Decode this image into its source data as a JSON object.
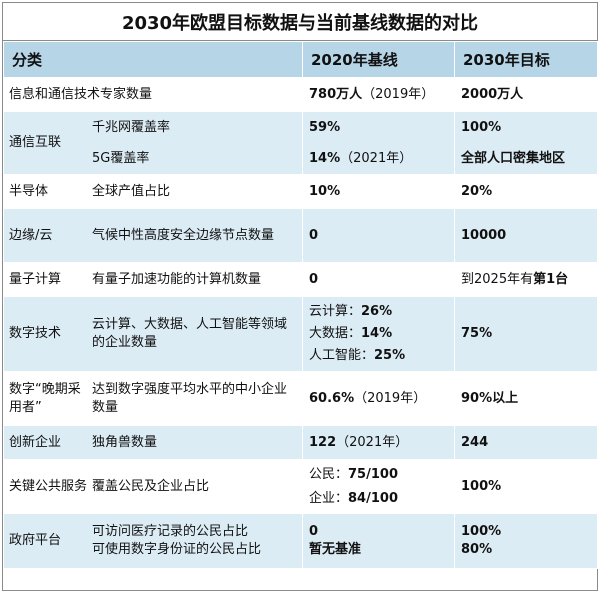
{
  "title": "2030年欧盟目标数据与当前基线数据的对比",
  "header": {
    "category": "分类",
    "baseline": "2020年基线",
    "target": "2030年目标"
  },
  "rows": [
    {
      "category": "信息和通信技术专家数量",
      "baseline": "780万人",
      "baseline_note": "（2019年）",
      "target": "2000万人"
    },
    {
      "category": "通信互联",
      "sub1": "千兆网覆盖率",
      "sub2": "5G覆盖率",
      "baseline1": "59%",
      "baseline2": "14%",
      "baseline2_note": "（2021年）",
      "target1": "100%",
      "target2": "全部人口密集地区"
    },
    {
      "category": "半导体",
      "sub": "全球产值占比",
      "baseline": "10%",
      "target": "20%"
    },
    {
      "category": "边缘/云",
      "sub": "气候中性高度安全边缘节点数量",
      "baseline": "0",
      "target": "10000"
    },
    {
      "category": "量子计算",
      "sub": "有量子加速功能的计算机数量",
      "baseline": "0",
      "target_prefix": "到2025年有",
      "target_bold": "第1台"
    },
    {
      "category": "数字技术",
      "sub": "云计算、大数据、人工智能等领域的企业数量",
      "baseline_lines": [
        {
          "label": "云计算：",
          "value": "26%"
        },
        {
          "label": "大数据：",
          "value": "14%"
        },
        {
          "label": "人工智能：",
          "value": "25%"
        }
      ],
      "target": "75%"
    },
    {
      "category": "数字“晚期采用者”",
      "sub": "达到数字强度平均水平的中小企业数量",
      "baseline": "60.6%",
      "baseline_note": "（2019年）",
      "target": "90%以上"
    },
    {
      "category": "创新企业",
      "sub": "独角兽数量",
      "baseline": "122",
      "baseline_note": "（2021年）",
      "target": "244"
    },
    {
      "category": "关键公共服务",
      "sub": "覆盖公民及企业占比",
      "baseline_lines": [
        {
          "label": "公民：",
          "value": "75/100"
        },
        {
          "label": "企业：",
          "value": "84/100"
        }
      ],
      "target": "100%"
    },
    {
      "category": "政府平台",
      "sub1": "可访问医疗记录的公民占比",
      "sub2": "可使用数字身份证的公民占比",
      "baseline1": "0",
      "baseline2": "暂无基准",
      "target1": "100%",
      "target2": "80%"
    }
  ]
}
